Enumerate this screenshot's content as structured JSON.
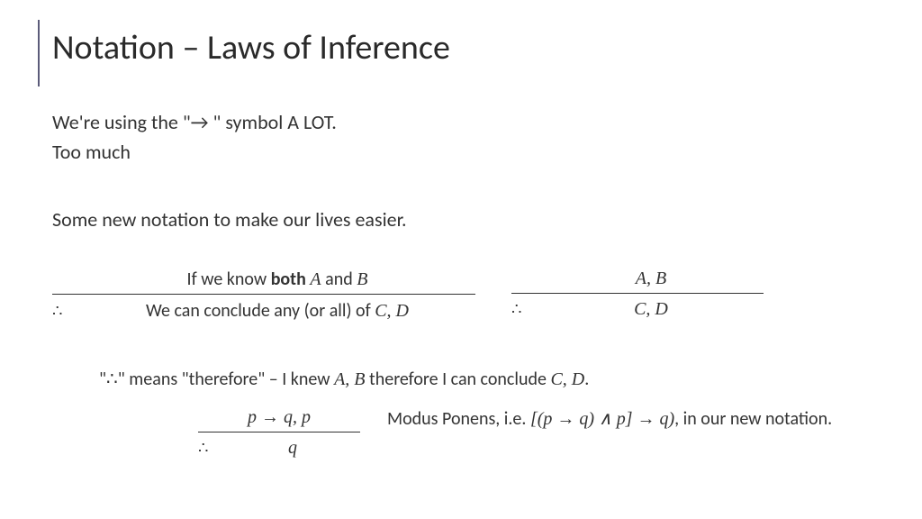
{
  "title": "Notation – Laws of Inference",
  "line1_a": "We're using the \"",
  "line1_b": "→",
  "line1_c": " \" symbol A LOT.",
  "line2": "Too much",
  "line3": "Some new notation to make our lives easier.",
  "ruleL": {
    "premise_a": "If we know ",
    "premise_b": "both",
    "premise_c": " ",
    "premise_d": "A",
    "premise_e": " and ",
    "premise_f": "B",
    "concl_a": "We can conclude any (or all) of ",
    "concl_b": "C, D"
  },
  "ruleR": {
    "premise": "A, B",
    "concl": "C, D"
  },
  "therefore": "∴",
  "explain_a": "\"",
  "explain_b": "∴",
  "explain_c": "\" means \"therefore\" – I knew ",
  "explain_d": "A, B",
  "explain_e": " therefore I can conclude ",
  "explain_f": "C, D",
  "explain_g": ".",
  "mp": {
    "premise": "p → q, p",
    "concl": "q",
    "desc_a": "Modus Ponens, i.e. ",
    "desc_b": "[(p → q) ∧ p] → q)",
    "desc_c": ", in our new notation."
  }
}
